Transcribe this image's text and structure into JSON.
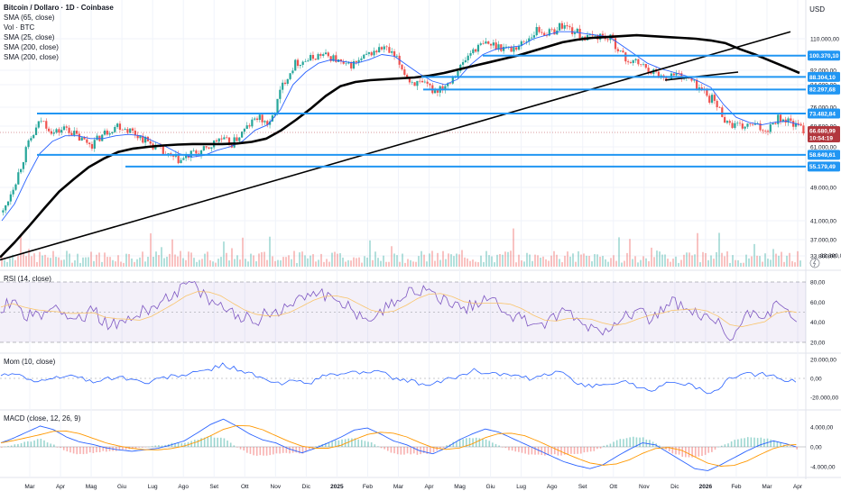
{
  "title": "Bitcoin / Dollaro · 1D · Coinbase",
  "legend": [
    "SMA (65, close)",
    "Vol · BTC",
    "SMA (25, close)",
    "SMA (200, close)",
    "SMA (200, close)"
  ],
  "currency": "USD",
  "rsi_title": "RSI (14, close)",
  "mom_title": "Mom (10, close)",
  "macd_title": "MACD (close, 12, 26, 9)",
  "colors": {
    "level": "#2196f3",
    "price_tag": "#b2373e",
    "up": "#26a69a",
    "down": "#ef5350",
    "sma": "#2962ff",
    "trend": "#000000",
    "rsi": "#7e57c2",
    "signal": "#ff9800"
  },
  "chart_data": [
    {
      "type": "candlestick",
      "title": "Bitcoin / Dollaro · 1D · Coinbase",
      "x_labels": [
        "Mar",
        "Apr",
        "Mag",
        "Giu",
        "Lug",
        "Ago",
        "Set",
        "Ott",
        "Nov",
        "Dic",
        "2025",
        "Feb",
        "Mar",
        "Apr",
        "Mag",
        "Giu",
        "Lug",
        "Ago",
        "Set",
        "Ott",
        "Nov",
        "Dic",
        "2026",
        "Feb",
        "Mar",
        "Apr"
      ],
      "y_ticks": [
        "110.000,00",
        "92.000,00",
        "84.000,00",
        "76.000,00",
        "68.500,00",
        "61.000,00",
        "49.000,00",
        "41.000,00",
        "37.000,00",
        "33.800,00"
      ],
      "y_ticks_values": [
        110000,
        92000,
        84000,
        76000,
        68500,
        61000,
        49000,
        41000,
        37000,
        33800
      ],
      "horizontal_levels": [
        {
          "label": "100.370,10",
          "value": 100370.1
        },
        {
          "label": "88.304,10",
          "value": 88304.1
        },
        {
          "label": "82.297,68",
          "value": 82297.68
        },
        {
          "label": "73.482,84",
          "value": 73482.84
        },
        {
          "label": "58.649,61",
          "value": 58649.61
        },
        {
          "label": "55.179,49",
          "value": 55179.49
        }
      ],
      "current_price": {
        "value": "66.680,99",
        "countdown": "10:54:19"
      },
      "close_series": [
        43000,
        51000,
        62000,
        71000,
        66000,
        68000,
        64000,
        62000,
        66000,
        69000,
        67000,
        64000,
        61000,
        58000,
        57000,
        59000,
        60000,
        64000,
        62000,
        67000,
        72000,
        69000,
        84000,
        96000,
        98000,
        101000,
        99000,
        94000,
        97000,
        102000,
        105000,
        98000,
        86000,
        84000,
        82000,
        85000,
        94000,
        104000,
        107000,
        106000,
        104000,
        108000,
        115000,
        113000,
        118000,
        114000,
        110000,
        112000,
        109000,
        98000,
        96000,
        92000,
        88000,
        90000,
        87000,
        82000,
        78000,
        70000,
        68000,
        69000,
        67000,
        72000,
        70000,
        67000
      ],
      "sma_series": [
        41000,
        45000,
        52000,
        59000,
        63000,
        65000,
        65000,
        64000,
        64000,
        65000,
        65500,
        65000,
        63000,
        61000,
        59000,
        58000,
        58500,
        60000,
        61000,
        63000,
        67000,
        69000,
        75000,
        84000,
        91000,
        96000,
        98000,
        97000,
        96000,
        98000,
        101000,
        100000,
        95000,
        90000,
        86000,
        84000,
        87000,
        95000,
        101000,
        104000,
        105000,
        106000,
        110000,
        112000,
        114000,
        114000,
        113000,
        112000,
        111000,
        106000,
        101000,
        96000,
        93000,
        91000,
        89000,
        86000,
        83000,
        77000,
        72000,
        70000,
        69000,
        70000,
        70500,
        69000
      ],
      "sma200_series": [
        33500,
        36500,
        40000,
        44000,
        48000,
        51500,
        55000,
        57500,
        59500,
        60500,
        61000,
        61500,
        61800,
        62000,
        62000,
        62000,
        62200,
        62800,
        64000,
        67000,
        71000,
        75500,
        80000,
        83500,
        85500,
        86500,
        87000,
        87500,
        88000,
        89000,
        90500,
        92500,
        94500,
        96500,
        98500,
        100500,
        103000,
        105500,
        108000,
        109500,
        110500,
        111000,
        111500,
        112000,
        111500,
        111000,
        110500,
        110000,
        109000,
        107500,
        104000,
        101000,
        97500,
        94000,
        90500
      ],
      "trend_lines": [
        {
          "from_value": 33000,
          "to_value": 114000,
          "note": "long-term rising trendline"
        },
        {
          "from_value": 86500,
          "to_value": 91000,
          "note": "short rising channel"
        }
      ],
      "volume_axis_value": "33.800,00"
    },
    {
      "type": "line",
      "title": "RSI (14, close)",
      "y_ticks": [
        "80,00",
        "60,00",
        "40,00",
        "20,00"
      ],
      "y_ticks_values": [
        80,
        60,
        40,
        20
      ],
      "band": [
        30,
        70
      ],
      "values": [
        55,
        62,
        48,
        45,
        50,
        58,
        42,
        46,
        52,
        40,
        36,
        44,
        48,
        55,
        62,
        70,
        78,
        72,
        60,
        55,
        50,
        45,
        42,
        48,
        52,
        58,
        65,
        72,
        68,
        60,
        55,
        48,
        45,
        50,
        62,
        70,
        72,
        68,
        64,
        58,
        52,
        60,
        66,
        58,
        48,
        42,
        40,
        38,
        45,
        52,
        40,
        35,
        30,
        42,
        48,
        52,
        45,
        50,
        60,
        55,
        48,
        42,
        38,
        22,
        40,
        52,
        48,
        55,
        50,
        44
      ]
    },
    {
      "type": "line",
      "title": "Mom (10, close)",
      "y_ticks": [
        "20.000,00",
        "0,00",
        "-20.000,00"
      ],
      "y_ticks_values": [
        20000,
        0,
        -20000
      ],
      "values": [
        4000,
        6000,
        -2000,
        -4000,
        2000,
        3000,
        -3000,
        -1000,
        2000,
        -2000,
        -5000,
        1000,
        3000,
        5000,
        9000,
        14000,
        10000,
        4000,
        -3000,
        -6000,
        -2000,
        -4000,
        3000,
        5000,
        6000,
        8000,
        4000,
        -2000,
        -4000,
        -8000,
        -2000,
        3000,
        8000,
        6000,
        4000,
        2000,
        -2000,
        5000,
        6000,
        -4000,
        -9000,
        -5000,
        -3000,
        -8000,
        -12000,
        -6000,
        -4000,
        -10000,
        -18000,
        -4000,
        6000,
        3000,
        5000,
        -2000,
        -4000
      ]
    },
    {
      "type": "line",
      "title": "MACD (close, 12, 26, 9)",
      "y_ticks": [
        "4.000,00",
        "0,00",
        "-4.000,00"
      ],
      "y_ticks_values": [
        4000,
        0,
        -4000
      ],
      "macd": [
        800,
        1800,
        3000,
        4200,
        3500,
        2000,
        1000,
        500,
        -200,
        -600,
        -900,
        -600,
        -300,
        400,
        1200,
        2800,
        4500,
        5600,
        4200,
        2600,
        1400,
        800,
        -400,
        -1200,
        -300,
        800,
        2000,
        3400,
        3800,
        2600,
        1200,
        400,
        -800,
        -1400,
        -200,
        1400,
        2600,
        3600,
        3000,
        1800,
        600,
        -600,
        -1800,
        -3000,
        -3800,
        -4400,
        -3600,
        -2000,
        -500,
        800,
        400,
        -1200,
        -2800,
        -4400,
        -4800,
        -3600,
        -2200,
        -800,
        400,
        1200,
        600,
        -200
      ]
    }
  ]
}
